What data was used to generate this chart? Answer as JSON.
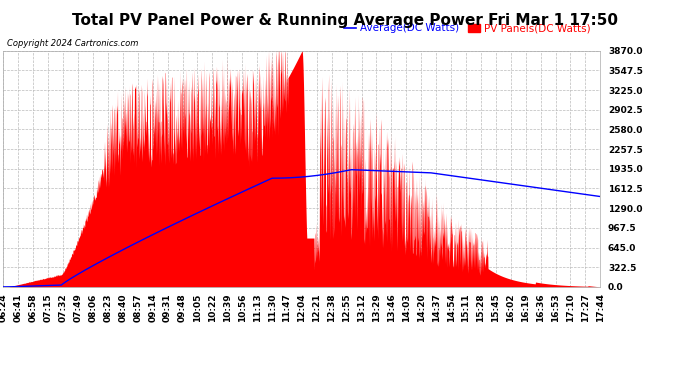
{
  "title": "Total PV Panel Power & Running Average Power Fri Mar 1 17:50",
  "copyright": "Copyright 2024 Cartronics.com",
  "legend_avg": "Average(DC Watts)",
  "legend_pv": "PV Panels(DC Watts)",
  "ymin": 0.0,
  "ymax": 3870.0,
  "yticks": [
    0.0,
    322.5,
    645.0,
    967.5,
    1290.0,
    1612.5,
    1935.0,
    2257.5,
    2580.0,
    2902.5,
    3225.0,
    3547.5,
    3870.0
  ],
  "bg_color": "#ffffff",
  "grid_color": "#bbbbbb",
  "pv_color": "#ff0000",
  "avg_color": "#0000ff",
  "title_fontsize": 11,
  "tick_fontsize": 6.5,
  "xtick_labels": [
    "06:24",
    "06:41",
    "06:58",
    "07:15",
    "07:32",
    "07:49",
    "08:06",
    "08:23",
    "08:40",
    "08:57",
    "09:14",
    "09:31",
    "09:48",
    "10:05",
    "10:22",
    "10:39",
    "10:56",
    "11:13",
    "11:30",
    "11:47",
    "12:04",
    "12:21",
    "12:38",
    "12:55",
    "13:12",
    "13:29",
    "13:46",
    "14:03",
    "14:20",
    "14:37",
    "14:54",
    "15:11",
    "15:28",
    "15:45",
    "16:02",
    "16:19",
    "16:36",
    "16:53",
    "17:10",
    "17:27",
    "17:44"
  ]
}
